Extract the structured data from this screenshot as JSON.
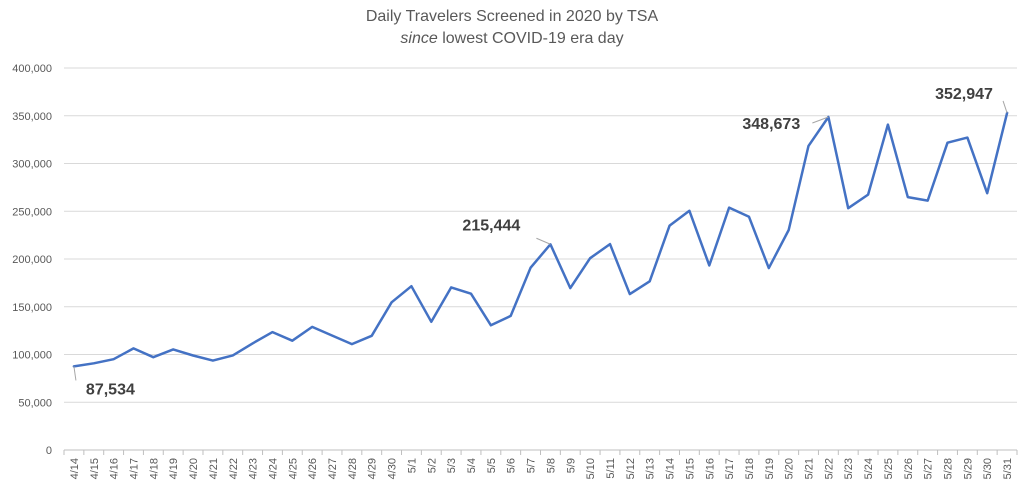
{
  "chart_data": {
    "type": "line",
    "title": "Daily Travelers Screened in 2020 by TSA",
    "subtitle_em": "since",
    "subtitle_rest": " lowest COVID-19 era day",
    "xlabel": "",
    "ylabel": "",
    "ylim": [
      0,
      400000
    ],
    "yticks": [
      "0",
      "50,000",
      "100,000",
      "150,000",
      "200,000",
      "250,000",
      "300,000",
      "350,000",
      "400,000"
    ],
    "grid": true,
    "legend": "none",
    "line_color": "#4472C4",
    "categories": [
      "4/14",
      "4/15",
      "4/16",
      "4/17",
      "4/18",
      "4/19",
      "4/20",
      "4/21",
      "4/22",
      "4/23",
      "4/24",
      "4/25",
      "4/26",
      "4/27",
      "4/28",
      "4/29",
      "4/30",
      "5/1",
      "5/2",
      "5/3",
      "5/4",
      "5/5",
      "5/6",
      "5/7",
      "5/8",
      "5/9",
      "5/10",
      "5/11",
      "5/12",
      "5/13",
      "5/14",
      "5/15",
      "5/16",
      "5/17",
      "5/18",
      "5/19",
      "5/20",
      "5/21",
      "5/22",
      "5/23",
      "5/24",
      "5/25",
      "5/26",
      "5/27",
      "5/28",
      "5/29",
      "5/30",
      "5/31"
    ],
    "values": [
      87534,
      90784,
      95085,
      106385,
      97130,
      105382,
      98968,
      93645,
      99044,
      111627,
      123464,
      114459,
      128875,
      119854,
      110913,
      119629,
      154695,
      171563,
      134261,
      170254,
      163692,
      130601,
      140409,
      190863,
      215444,
      169580,
      200840,
      215645,
      163205,
      176667,
      234928,
      250467,
      193340,
      253846,
      244176,
      190477,
      230336,
      318449,
      348673,
      253190,
      267451,
      340769,
      264843,
      261170,
      321776,
      327133,
      268867,
      352947
    ],
    "annotations": [
      {
        "label": "87,534",
        "index": 0
      },
      {
        "label": "215,444",
        "index": 24
      },
      {
        "label": "348,673",
        "index": 38
      },
      {
        "label": "352,947",
        "index": 47
      }
    ]
  }
}
